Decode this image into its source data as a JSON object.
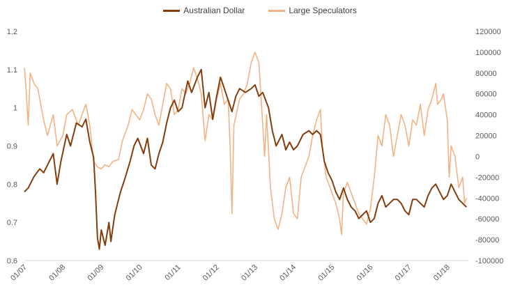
{
  "chart_data": {
    "type": "line",
    "title": "",
    "legend": {
      "placement": "top-center"
    },
    "grid": false,
    "x_ticks": [
      "01/07",
      "01/08",
      "01/09",
      "01/10",
      "01/11",
      "01/12",
      "01/13",
      "01/14",
      "01/15",
      "01/16",
      "01/17",
      "01/18"
    ],
    "y_left": {
      "min": 0.6,
      "max": 1.2,
      "ticks": [
        "0.6",
        "0.7",
        "0.8",
        "0.9",
        "1",
        "1.1",
        "1.2"
      ]
    },
    "y_right": {
      "min": -100000,
      "max": 120000,
      "ticks": [
        "-100000",
        "-80000",
        "-60000",
        "-40000",
        "-20000",
        "0",
        "20000",
        "40000",
        "60000",
        "80000",
        "100000",
        "120000"
      ]
    },
    "series": [
      {
        "name": "Australian Dollar",
        "axis": "left",
        "color": "#843C0C",
        "points": [
          [
            2007.0,
            0.78
          ],
          [
            2007.1,
            0.79
          ],
          [
            2007.25,
            0.82
          ],
          [
            2007.4,
            0.84
          ],
          [
            2007.5,
            0.83
          ],
          [
            2007.6,
            0.85
          ],
          [
            2007.75,
            0.88
          ],
          [
            2007.85,
            0.8
          ],
          [
            2007.95,
            0.86
          ],
          [
            2008.1,
            0.93
          ],
          [
            2008.2,
            0.9
          ],
          [
            2008.35,
            0.96
          ],
          [
            2008.5,
            0.95
          ],
          [
            2008.6,
            0.97
          ],
          [
            2008.7,
            0.91
          ],
          [
            2008.8,
            0.87
          ],
          [
            2008.85,
            0.78
          ],
          [
            2008.9,
            0.66
          ],
          [
            2008.95,
            0.63
          ],
          [
            2009.0,
            0.68
          ],
          [
            2009.1,
            0.64
          ],
          [
            2009.2,
            0.7
          ],
          [
            2009.25,
            0.65
          ],
          [
            2009.35,
            0.72
          ],
          [
            2009.5,
            0.78
          ],
          [
            2009.6,
            0.81
          ],
          [
            2009.75,
            0.86
          ],
          [
            2009.85,
            0.9
          ],
          [
            2009.95,
            0.92
          ],
          [
            2010.1,
            0.88
          ],
          [
            2010.2,
            0.92
          ],
          [
            2010.3,
            0.85
          ],
          [
            2010.4,
            0.84
          ],
          [
            2010.5,
            0.88
          ],
          [
            2010.6,
            0.91
          ],
          [
            2010.7,
            0.96
          ],
          [
            2010.8,
            1.0
          ],
          [
            2010.9,
            1.02
          ],
          [
            2011.0,
            0.99
          ],
          [
            2011.1,
            1.0
          ],
          [
            2011.25,
            1.07
          ],
          [
            2011.35,
            1.04
          ],
          [
            2011.5,
            1.08
          ],
          [
            2011.6,
            1.1
          ],
          [
            2011.7,
            1.0
          ],
          [
            2011.8,
            1.04
          ],
          [
            2011.9,
            0.97
          ],
          [
            2012.0,
            1.03
          ],
          [
            2012.1,
            1.08
          ],
          [
            2012.2,
            1.05
          ],
          [
            2012.3,
            1.02
          ],
          [
            2012.4,
            0.99
          ],
          [
            2012.5,
            1.03
          ],
          [
            2012.6,
            1.05
          ],
          [
            2012.75,
            1.04
          ],
          [
            2012.9,
            1.05
          ],
          [
            2013.0,
            1.06
          ],
          [
            2013.1,
            1.03
          ],
          [
            2013.2,
            1.04
          ],
          [
            2013.35,
            1.0
          ],
          [
            2013.45,
            0.94
          ],
          [
            2013.55,
            0.9
          ],
          [
            2013.7,
            0.93
          ],
          [
            2013.8,
            0.89
          ],
          [
            2013.9,
            0.91
          ],
          [
            2014.0,
            0.89
          ],
          [
            2014.1,
            0.9
          ],
          [
            2014.25,
            0.93
          ],
          [
            2014.4,
            0.94
          ],
          [
            2014.5,
            0.93
          ],
          [
            2014.6,
            0.94
          ],
          [
            2014.7,
            0.93
          ],
          [
            2014.8,
            0.86
          ],
          [
            2014.9,
            0.83
          ],
          [
            2015.0,
            0.81
          ],
          [
            2015.1,
            0.78
          ],
          [
            2015.2,
            0.76
          ],
          [
            2015.3,
            0.79
          ],
          [
            2015.4,
            0.76
          ],
          [
            2015.5,
            0.74
          ],
          [
            2015.6,
            0.73
          ],
          [
            2015.7,
            0.71
          ],
          [
            2015.8,
            0.72
          ],
          [
            2015.9,
            0.73
          ],
          [
            2016.0,
            0.7
          ],
          [
            2016.1,
            0.71
          ],
          [
            2016.2,
            0.75
          ],
          [
            2016.3,
            0.77
          ],
          [
            2016.4,
            0.74
          ],
          [
            2016.5,
            0.75
          ],
          [
            2016.6,
            0.76
          ],
          [
            2016.7,
            0.76
          ],
          [
            2016.8,
            0.75
          ],
          [
            2016.9,
            0.73
          ],
          [
            2017.0,
            0.72
          ],
          [
            2017.1,
            0.76
          ],
          [
            2017.2,
            0.76
          ],
          [
            2017.3,
            0.75
          ],
          [
            2017.4,
            0.74
          ],
          [
            2017.5,
            0.77
          ],
          [
            2017.6,
            0.79
          ],
          [
            2017.7,
            0.8
          ],
          [
            2017.8,
            0.78
          ],
          [
            2017.9,
            0.76
          ],
          [
            2018.0,
            0.77
          ],
          [
            2018.1,
            0.8
          ],
          [
            2018.2,
            0.78
          ],
          [
            2018.3,
            0.76
          ],
          [
            2018.4,
            0.75
          ],
          [
            2018.5,
            0.74
          ]
        ]
      },
      {
        "name": "Large Speculators",
        "axis": "right",
        "color": "#F4B183",
        "points": [
          [
            2007.0,
            85000
          ],
          [
            2007.05,
            60000
          ],
          [
            2007.1,
            30000
          ],
          [
            2007.15,
            80000
          ],
          [
            2007.25,
            70000
          ],
          [
            2007.35,
            65000
          ],
          [
            2007.5,
            35000
          ],
          [
            2007.6,
            20000
          ],
          [
            2007.75,
            40000
          ],
          [
            2007.85,
            10000
          ],
          [
            2008.0,
            20000
          ],
          [
            2008.1,
            40000
          ],
          [
            2008.25,
            45000
          ],
          [
            2008.4,
            30000
          ],
          [
            2008.5,
            40000
          ],
          [
            2008.6,
            50000
          ],
          [
            2008.7,
            30000
          ],
          [
            2008.8,
            -5000
          ],
          [
            2008.9,
            -10000
          ],
          [
            2009.0,
            -12000
          ],
          [
            2009.1,
            -8000
          ],
          [
            2009.2,
            -10000
          ],
          [
            2009.3,
            -5000
          ],
          [
            2009.45,
            -3000
          ],
          [
            2009.55,
            15000
          ],
          [
            2009.7,
            30000
          ],
          [
            2009.8,
            45000
          ],
          [
            2009.9,
            40000
          ],
          [
            2010.0,
            35000
          ],
          [
            2010.1,
            45000
          ],
          [
            2010.2,
            60000
          ],
          [
            2010.3,
            55000
          ],
          [
            2010.4,
            40000
          ],
          [
            2010.5,
            30000
          ],
          [
            2010.6,
            50000
          ],
          [
            2010.7,
            70000
          ],
          [
            2010.8,
            65000
          ],
          [
            2010.9,
            40000
          ],
          [
            2011.0,
            45000
          ],
          [
            2011.1,
            65000
          ],
          [
            2011.2,
            60000
          ],
          [
            2011.3,
            70000
          ],
          [
            2011.4,
            85000
          ],
          [
            2011.5,
            75000
          ],
          [
            2011.6,
            60000
          ],
          [
            2011.7,
            15000
          ],
          [
            2011.8,
            40000
          ],
          [
            2011.9,
            35000
          ],
          [
            2012.0,
            55000
          ],
          [
            2012.1,
            70000
          ],
          [
            2012.2,
            50000
          ],
          [
            2012.3,
            55000
          ],
          [
            2012.35,
            10000
          ],
          [
            2012.4,
            -55000
          ],
          [
            2012.45,
            30000
          ],
          [
            2012.6,
            55000
          ],
          [
            2012.7,
            60000
          ],
          [
            2012.8,
            70000
          ],
          [
            2012.9,
            90000
          ],
          [
            2013.0,
            100000
          ],
          [
            2013.1,
            90000
          ],
          [
            2013.15,
            60000
          ],
          [
            2013.25,
            0
          ],
          [
            2013.3,
            40000
          ],
          [
            2013.4,
            -30000
          ],
          [
            2013.5,
            -60000
          ],
          [
            2013.6,
            -70000
          ],
          [
            2013.7,
            -55000
          ],
          [
            2013.8,
            -30000
          ],
          [
            2013.9,
            -20000
          ],
          [
            2014.0,
            -55000
          ],
          [
            2014.1,
            -60000
          ],
          [
            2014.2,
            -20000
          ],
          [
            2014.3,
            -10000
          ],
          [
            2014.4,
            0
          ],
          [
            2014.5,
            20000
          ],
          [
            2014.6,
            35000
          ],
          [
            2014.7,
            45000
          ],
          [
            2014.75,
            10000
          ],
          [
            2014.85,
            -20000
          ],
          [
            2014.95,
            -30000
          ],
          [
            2015.0,
            -35000
          ],
          [
            2015.1,
            -45000
          ],
          [
            2015.2,
            -60000
          ],
          [
            2015.25,
            -75000
          ],
          [
            2015.3,
            -35000
          ],
          [
            2015.4,
            -25000
          ],
          [
            2015.5,
            -35000
          ],
          [
            2015.6,
            -45000
          ],
          [
            2015.7,
            -55000
          ],
          [
            2015.8,
            -60000
          ],
          [
            2015.9,
            -65000
          ],
          [
            2016.0,
            -50000
          ],
          [
            2016.1,
            -20000
          ],
          [
            2016.2,
            20000
          ],
          [
            2016.3,
            10000
          ],
          [
            2016.4,
            40000
          ],
          [
            2016.5,
            30000
          ],
          [
            2016.6,
            0
          ],
          [
            2016.7,
            20000
          ],
          [
            2016.8,
            40000
          ],
          [
            2016.9,
            30000
          ],
          [
            2017.0,
            10000
          ],
          [
            2017.1,
            35000
          ],
          [
            2017.2,
            30000
          ],
          [
            2017.3,
            50000
          ],
          [
            2017.4,
            20000
          ],
          [
            2017.5,
            45000
          ],
          [
            2017.6,
            55000
          ],
          [
            2017.7,
            70000
          ],
          [
            2017.75,
            50000
          ],
          [
            2017.85,
            55000
          ],
          [
            2017.9,
            60000
          ],
          [
            2018.0,
            35000
          ],
          [
            2018.05,
            -20000
          ],
          [
            2018.1,
            10000
          ],
          [
            2018.2,
            0
          ],
          [
            2018.3,
            -30000
          ],
          [
            2018.4,
            -20000
          ],
          [
            2018.45,
            -45000
          ],
          [
            2018.5,
            -40000
          ]
        ]
      }
    ]
  }
}
